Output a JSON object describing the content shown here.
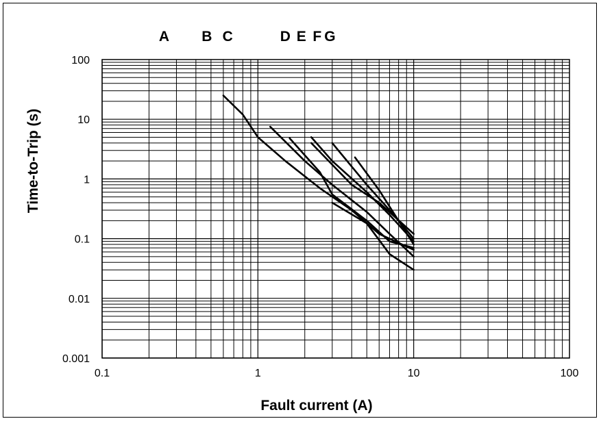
{
  "chart_data": {
    "type": "line",
    "xscale": "log",
    "yscale": "log",
    "xlim": [
      0.1,
      100
    ],
    "ylim": [
      0.001,
      100
    ],
    "grid": true,
    "xlabel": "Fault current (A)",
    "ylabel": "Time-to-Trip (s)",
    "xticks": [
      "0.1",
      "1",
      "10",
      "100"
    ],
    "yticks": [
      "100",
      "10",
      "1",
      "0.1",
      "0.01",
      "0.001"
    ],
    "curve_labels": [
      {
        "text": "A",
        "x": 0.25
      },
      {
        "text": "B",
        "x": 0.47
      },
      {
        "text": "C",
        "x": 0.64
      },
      {
        "text": "D",
        "x": 1.5
      },
      {
        "text": "E",
        "x": 1.9
      },
      {
        "text": "F",
        "x": 2.4
      },
      {
        "text": "G",
        "x": 2.9
      }
    ],
    "series": [
      {
        "values": [
          [
            0.6,
            25
          ],
          [
            0.8,
            12
          ],
          [
            1.0,
            5
          ],
          [
            1.5,
            2
          ],
          [
            2.5,
            0.7
          ],
          [
            4,
            0.3
          ],
          [
            6,
            0.12
          ],
          [
            10,
            0.065
          ]
        ]
      },
      {
        "values": [
          [
            1.2,
            7.5
          ],
          [
            2,
            2
          ],
          [
            3,
            0.8
          ],
          [
            5,
            0.28
          ],
          [
            7,
            0.12
          ],
          [
            10,
            0.05
          ]
        ]
      },
      {
        "values": [
          [
            1.6,
            4.8
          ],
          [
            2.5,
            1.3
          ],
          [
            3,
            0.55
          ],
          [
            5,
            0.2
          ],
          [
            7,
            0.09
          ],
          [
            10,
            0.07
          ]
        ]
      },
      {
        "values": [
          [
            2.2,
            5
          ],
          [
            3,
            2
          ],
          [
            5,
            0.6
          ],
          [
            7,
            0.25
          ],
          [
            10,
            0.09
          ]
        ]
      },
      {
        "values": [
          [
            2.2,
            4
          ],
          [
            4,
            0.8
          ],
          [
            6,
            0.4
          ],
          [
            10,
            0.12
          ]
        ]
      },
      {
        "values": [
          [
            3,
            4
          ],
          [
            5,
            0.8
          ],
          [
            7,
            0.3
          ],
          [
            10,
            0.1
          ]
        ]
      },
      {
        "values": [
          [
            4.2,
            2.3
          ],
          [
            6,
            0.65
          ],
          [
            8,
            0.2
          ],
          [
            10,
            0.08
          ]
        ]
      }
    ],
    "extra_curves": [
      {
        "values": [
          [
            3,
            0.4
          ],
          [
            5,
            0.18
          ],
          [
            7,
            0.055
          ],
          [
            10,
            0.03
          ]
        ]
      }
    ]
  }
}
